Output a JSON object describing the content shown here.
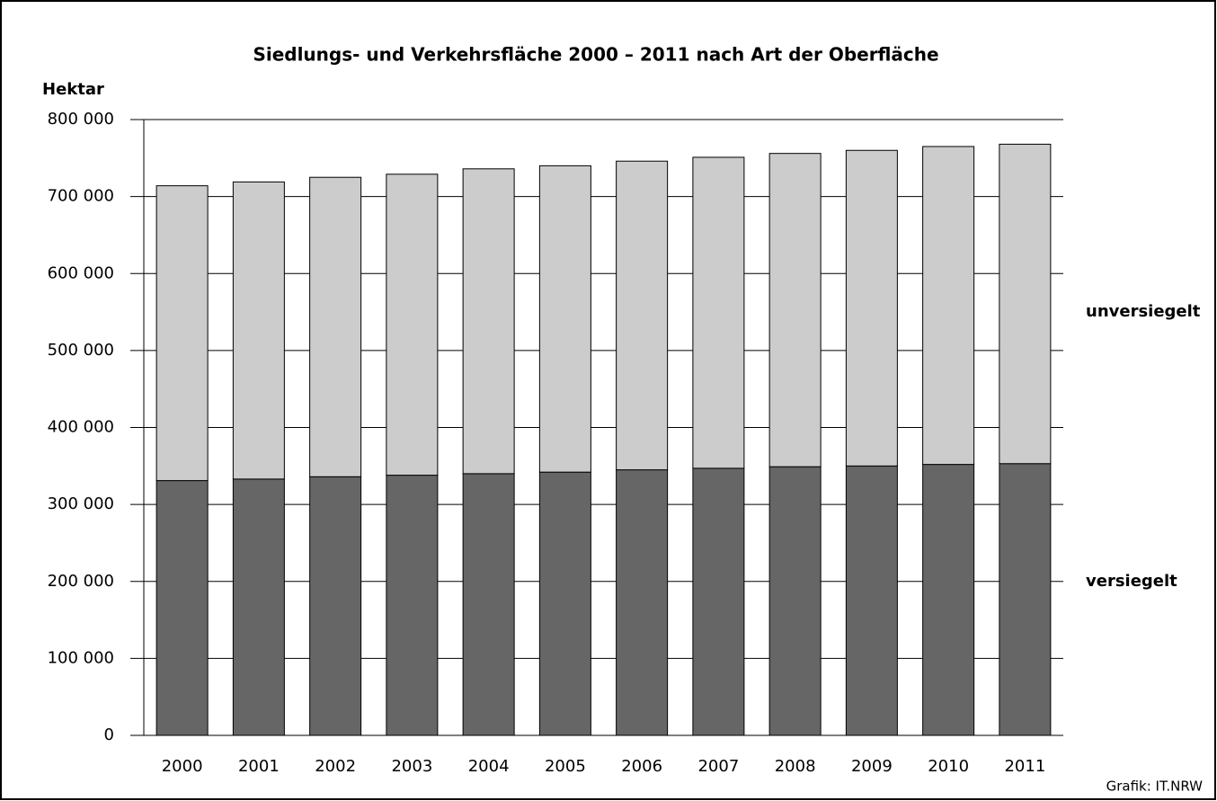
{
  "chart_data": {
    "type": "stacked_bar",
    "title": "Siedlungs- und Verkehrsfläche 2000 – 2011 nach Art der Oberfläche",
    "y_label": "Hektar",
    "source": "Grafik: IT.NRW",
    "categories": [
      "2000",
      "2001",
      "2002",
      "2003",
      "2004",
      "2005",
      "2006",
      "2007",
      "2008",
      "2009",
      "2010",
      "2011"
    ],
    "series": [
      {
        "name": "versiegelt",
        "color": "#666666",
        "values": [
          331000,
          333000,
          336000,
          338000,
          340000,
          342000,
          345000,
          347000,
          349000,
          350000,
          352000,
          353000
        ]
      },
      {
        "name": "unversiegelt",
        "color": "#cccccc",
        "values": [
          383000,
          386000,
          389000,
          391000,
          396000,
          398000,
          401000,
          404000,
          407000,
          410000,
          413000,
          415000
        ]
      }
    ],
    "ylim": [
      0,
      800000
    ],
    "yticks": [
      0,
      {
        "value": 100000,
        "label": "100 000"
      },
      {
        "value": 200000,
        "label": "200 000"
      },
      {
        "value": 300000,
        "label": "300 000"
      },
      {
        "value": 400000,
        "label": "400 000"
      },
      {
        "value": 500000,
        "label": "500 000"
      },
      {
        "value": 600000,
        "label": "600 000"
      },
      {
        "value": 700000,
        "label": "700 000"
      },
      {
        "value": 800000,
        "label": "800 000"
      }
    ],
    "grid": true
  }
}
